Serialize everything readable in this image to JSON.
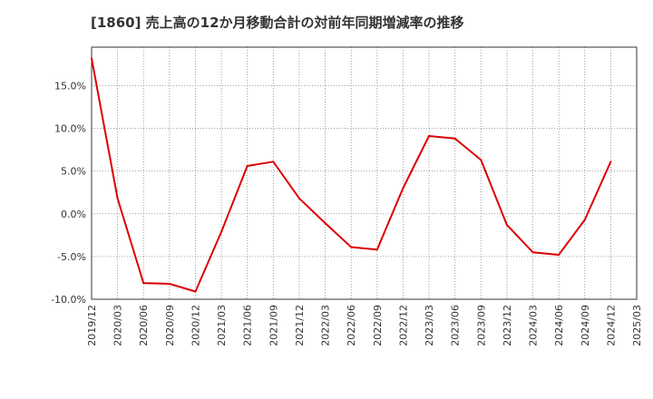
{
  "chart_data": {
    "type": "line",
    "title": "[1860]  売上高の12か月移動合計の対前年同期増減率の推移",
    "xlabel": "",
    "ylabel": "",
    "ylim": [
      -10,
      19.5
    ],
    "yticks": [
      -10,
      -5,
      0,
      5,
      10,
      15
    ],
    "ytick_labels": [
      "-10.0%",
      "-5.0%",
      "0.0%",
      "5.0%",
      "10.0%",
      "15.0%"
    ],
    "x_ticks": [
      "2019/12",
      "2020/03",
      "2020/06",
      "2020/09",
      "2020/12",
      "2021/03",
      "2021/06",
      "2021/09",
      "2021/12",
      "2022/03",
      "2022/06",
      "2022/09",
      "2022/12",
      "2023/03",
      "2023/06",
      "2023/09",
      "2023/12",
      "2024/03",
      "2024/06",
      "2024/09",
      "2024/12",
      "2025/03"
    ],
    "grid": true,
    "series": [
      {
        "name": "売上高の12か月移動合計の対前年同期増減率",
        "color": "#dd0000",
        "x": [
          "2019/12",
          "2020/03",
          "2020/06",
          "2020/09",
          "2020/12",
          "2021/03",
          "2021/06",
          "2021/09",
          "2021/12",
          "2022/03",
          "2022/06",
          "2022/09",
          "2022/12",
          "2023/03",
          "2023/06",
          "2023/09",
          "2023/12",
          "2024/03",
          "2024/06",
          "2024/09",
          "2024/12"
        ],
        "values": [
          18.2,
          1.8,
          -8.1,
          -8.2,
          -9.1,
          -2.1,
          5.6,
          6.1,
          1.8,
          -1.1,
          -3.9,
          -4.2,
          3.0,
          9.1,
          8.8,
          6.3,
          -1.3,
          -4.5,
          -4.8,
          -0.7,
          6.1
        ]
      }
    ]
  }
}
